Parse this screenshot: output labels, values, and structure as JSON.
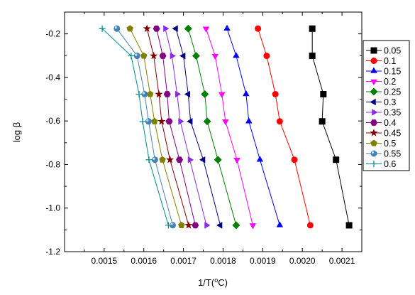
{
  "chart_data": {
    "type": "line",
    "xlabel": "1/T(°C)",
    "ylabel": "log β",
    "xlim": [
      0.0014,
      0.00215
    ],
    "ylim": [
      -1.2,
      -0.1
    ],
    "x_ticks": [
      "0.0015",
      "0.0016",
      "0.0017",
      "0.0018",
      "0.0019",
      "0.0020",
      "0.0021"
    ],
    "y_ticks": [
      "-0.2",
      "-0.4",
      "-0.6",
      "-0.8",
      "-1.0",
      "-1.2"
    ],
    "x_tick_values": [
      0.0015,
      0.0016,
      0.0017,
      0.0018,
      0.0019,
      0.002,
      0.0021
    ],
    "y_tick_values": [
      -0.2,
      -0.4,
      -0.6,
      -0.8,
      -1.0,
      -1.2
    ],
    "y": [
      -0.176,
      -0.301,
      -0.477,
      -0.602,
      -0.778,
      -1.079
    ],
    "legend_position": "right",
    "grid": false,
    "series": [
      {
        "name": "0.05",
        "color": "#000000",
        "marker": "square",
        "x": [
          0.002025,
          0.002025,
          0.002053,
          0.00205,
          0.002085,
          0.002118
        ]
      },
      {
        "name": "0.1",
        "color": "#ff0000",
        "marker": "circle",
        "x": [
          0.001888,
          0.00191,
          0.001932,
          0.001943,
          0.00198,
          0.00202
        ]
      },
      {
        "name": "0.15",
        "color": "#0000ff",
        "marker": "triangle-up",
        "x": [
          0.00181,
          0.001833,
          0.001858,
          0.001865,
          0.001893,
          0.001943
        ]
      },
      {
        "name": "0.2",
        "color": "#ff00ff",
        "marker": "triangle-down",
        "x": [
          0.001757,
          0.00178,
          0.001797,
          0.001806,
          0.001835,
          0.001875
        ]
      },
      {
        "name": "0.25",
        "color": "#008000",
        "marker": "diamond",
        "x": [
          0.001712,
          0.001732,
          0.001754,
          0.00176,
          0.001787,
          0.001833
        ]
      },
      {
        "name": "0.3",
        "color": "#000080",
        "marker": "triangle-left",
        "x": [
          0.001681,
          0.0017,
          0.001712,
          0.001718,
          0.00175,
          0.001793
        ]
      },
      {
        "name": "0.35",
        "color": "#8a2be2",
        "marker": "triangle-right",
        "x": [
          0.001654,
          0.001671,
          0.001684,
          0.001692,
          0.001716,
          0.001758
        ]
      },
      {
        "name": "0.4",
        "color": "#800080",
        "marker": "hexagon",
        "x": [
          0.001632,
          0.001648,
          0.001659,
          0.001664,
          0.00169,
          0.00173
        ]
      },
      {
        "name": "0.45",
        "color": "#800000",
        "marker": "star",
        "x": [
          0.001608,
          0.001625,
          0.001638,
          0.001645,
          0.001666,
          0.001713
        ]
      },
      {
        "name": "0.5",
        "color": "#808000",
        "marker": "pentagon",
        "x": [
          0.001565,
          0.0016,
          0.001616,
          0.001627,
          0.001647,
          0.001695
        ]
      },
      {
        "name": "0.55",
        "color": "#4682b4",
        "marker": "sphere",
        "x": [
          0.001532,
          0.001583,
          0.001602,
          0.001612,
          0.001628,
          0.001673
        ]
      },
      {
        "name": "0.6",
        "color": "#008b8b",
        "marker": "plus",
        "x": [
          0.001495,
          0.001568,
          0.001588,
          0.001597,
          0.001613,
          0.001662
        ]
      }
    ]
  }
}
